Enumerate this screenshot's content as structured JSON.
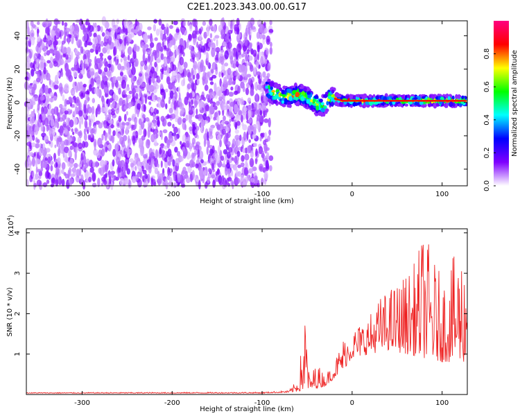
{
  "title": "C2E1.2023.343.00.00.G17",
  "chart_data": [
    {
      "type": "heatmap",
      "xlabel": "Height of straight line (km)",
      "ylabel": "Frequency (Hz)",
      "xlim": [
        -362,
        128
      ],
      "ylim": [
        -50,
        49
      ],
      "xticks": [
        -300,
        -200,
        -100,
        0,
        100
      ],
      "yticks": [
        -40,
        -20,
        0,
        20,
        40
      ],
      "colorbar": {
        "label": "Normalized spectral amplitude",
        "range": [
          0,
          1
        ],
        "ticks": [
          0.0,
          0.2,
          0.4,
          0.6,
          0.8
        ],
        "colors": [
          "#ffffff",
          "#7f00ff",
          "#0000ff",
          "#00ffff",
          "#00ff00",
          "#ffff00",
          "#ff0000",
          "#ff0080"
        ]
      },
      "features": {
        "noise_region_x": [
          -362,
          -90
        ],
        "signal_track": [
          [
            -95,
            8
          ],
          [
            -85,
            5
          ],
          [
            -75,
            3
          ],
          [
            -60,
            5
          ],
          [
            -50,
            3
          ],
          [
            -40,
            -1
          ],
          [
            -32,
            -2
          ],
          [
            -25,
            3
          ],
          [
            -10,
            1
          ],
          [
            0,
            1
          ],
          [
            128,
            1
          ]
        ],
        "signal_amplitude": 0.9
      }
    },
    {
      "type": "line",
      "xlabel": "Height of straight line (km)",
      "ylabel": "SNR (10 * v/v)",
      "scale_label": "(x10",
      "scale_exp": "4",
      "scale_close": ")",
      "xlim": [
        -362,
        128
      ],
      "ylim": [
        0,
        4.1
      ],
      "xticks": [
        -300,
        -200,
        -100,
        0,
        100
      ],
      "yticks": [
        1,
        2,
        3,
        4
      ],
      "series": [
        {
          "color": "#ee2222",
          "envelope": [
            [
              -362,
              0.05
            ],
            [
              -100,
              0.06
            ],
            [
              -70,
              0.1
            ],
            [
              -60,
              0.4
            ],
            [
              -52,
              2.1
            ],
            [
              -47,
              0.4
            ],
            [
              -40,
              0.8
            ],
            [
              -30,
              0.5
            ],
            [
              -20,
              0.8
            ],
            [
              -10,
              1.4
            ],
            [
              0,
              1.6
            ],
            [
              10,
              1.8
            ],
            [
              20,
              2.0
            ],
            [
              30,
              2.4
            ],
            [
              40,
              2.6
            ],
            [
              50,
              2.8
            ],
            [
              60,
              3.0
            ],
            [
              70,
              3.3
            ],
            [
              80,
              4.1
            ],
            [
              90,
              3.4
            ],
            [
              100,
              2.9
            ],
            [
              110,
              3.3
            ],
            [
              120,
              3.7
            ],
            [
              128,
              3.2
            ]
          ],
          "baseline": [
            [
              -362,
              0.03
            ],
            [
              -100,
              0.03
            ],
            [
              -70,
              0.05
            ],
            [
              -50,
              0.1
            ],
            [
              -30,
              0.2
            ],
            [
              -10,
              0.6
            ],
            [
              0,
              0.9
            ],
            [
              20,
              1.0
            ],
            [
              40,
              1.1
            ],
            [
              60,
              1.0
            ],
            [
              80,
              0.9
            ],
            [
              100,
              0.8
            ],
            [
              128,
              0.8
            ]
          ]
        }
      ]
    }
  ]
}
